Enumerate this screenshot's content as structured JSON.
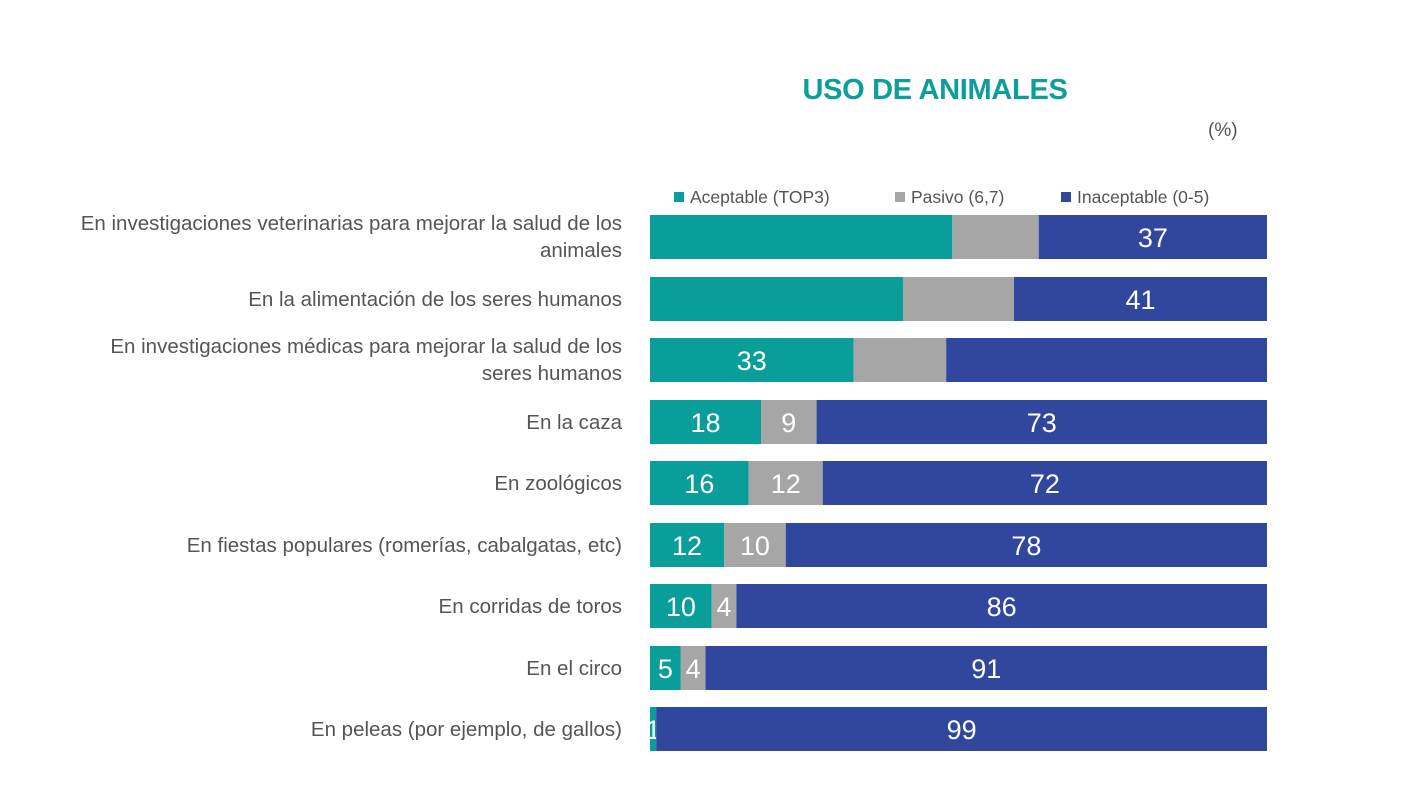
{
  "chart_data": {
    "type": "bar",
    "orientation": "horizontal",
    "stacked": true,
    "percent_stacked": true,
    "title": "USO DE ANIMALES",
    "unit": "(%)",
    "legend_position": "top",
    "categories": [
      "En investigaciones veterinarias para mejorar la salud de los animales",
      "En la alimentación de los seres humanos",
      "En investigaciones médicas para mejorar la salud de los seres humanos",
      "En la caza",
      "En zoológicos",
      "En fiestas populares (romerías, cabalgatas, etc)",
      "En corridas de toros",
      "En el circo",
      "En peleas (por ejemplo, de gallos)"
    ],
    "series": [
      {
        "name": "Aceptable (TOP3)",
        "color": "#0a9e9a",
        "values": [
          49,
          41,
          33,
          18,
          16,
          12,
          10,
          5,
          1
        ],
        "shown_labels": [
          "",
          "",
          "33",
          "18",
          "16",
          "12",
          "10",
          "5",
          "1"
        ]
      },
      {
        "name": "Pasivo (6,7)",
        "color": "#a6a6a6",
        "values": [
          14,
          18,
          15,
          9,
          12,
          10,
          4,
          4,
          0
        ],
        "shown_labels": [
          "",
          "",
          "",
          "9",
          "12",
          "10",
          "4",
          "4",
          ""
        ]
      },
      {
        "name": "Inaceptable (0-5)",
        "color": "#31479e",
        "values": [
          37,
          41,
          52,
          73,
          72,
          78,
          86,
          91,
          99
        ],
        "shown_labels": [
          "37",
          "41",
          "",
          "73",
          "72",
          "78",
          "86",
          "91",
          "99"
        ]
      }
    ],
    "xlim": [
      0,
      100
    ],
    "grid": false
  }
}
